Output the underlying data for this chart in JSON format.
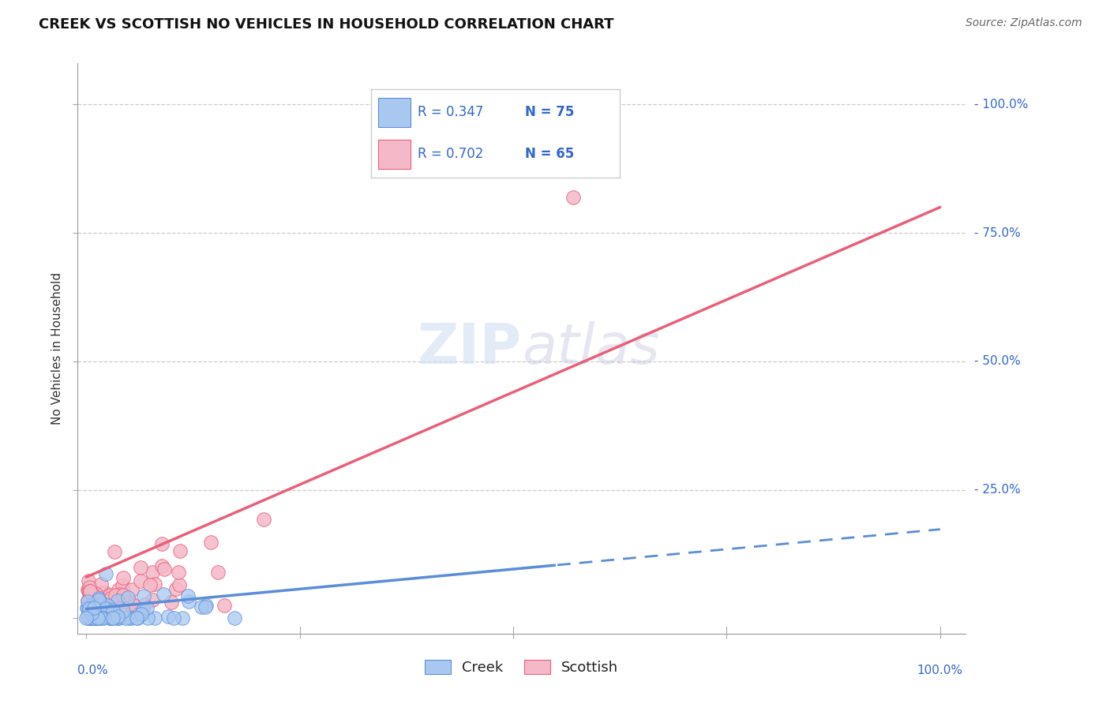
{
  "title": "CREEK VS SCOTTISH NO VEHICLES IN HOUSEHOLD CORRELATION CHART",
  "source": "Source: ZipAtlas.com",
  "ylabel": "No Vehicles in Household",
  "creek_R": "R = 0.347",
  "creek_N": "N = 75",
  "scottish_R": "R = 0.702",
  "scottish_N": "N = 65",
  "creek_color": "#a8c8f0",
  "scottish_color": "#f5b8c8",
  "creek_line_color": "#5b8dd9",
  "scottish_line_color": "#e8607a",
  "background_color": "#ffffff",
  "grid_color": "#cccccc",
  "watermark_zip": "ZIP",
  "watermark_atlas": "atlas",
  "title_fontsize": 13,
  "label_fontsize": 11,
  "tick_fontsize": 11,
  "source_fontsize": 10,
  "legend_fontsize": 12,
  "tick_color": "#3366cc"
}
